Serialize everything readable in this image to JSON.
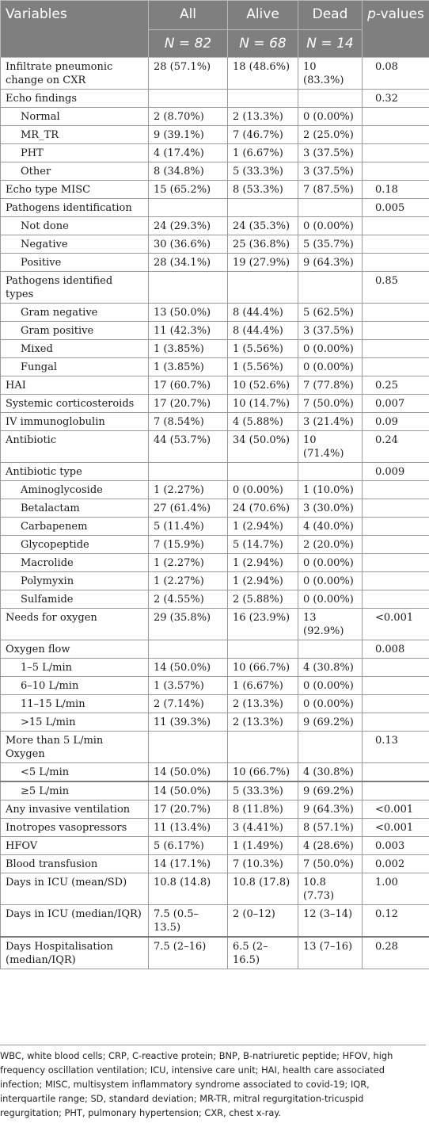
{
  "header": {
    "variables": "Variables",
    "all": "All",
    "alive": "Alive",
    "dead": "Dead",
    "p_prefix": "p",
    "p_suffix": "-values",
    "n_all": "N = 82",
    "n_alive": "N = 68",
    "n_dead": "N = 14"
  },
  "rows": [
    {
      "label": "Infiltrate pneumonic change on CXR",
      "all": "28 (57.1%)",
      "alive": "18 (48.6%)",
      "dead": "10 (83.3%)",
      "p": "0.08",
      "indent": false
    },
    {
      "label": "Echo findings",
      "all": "",
      "alive": "",
      "dead": "",
      "p": "0.32",
      "indent": false
    },
    {
      "label": "Normal",
      "all": "2 (8.70%)",
      "alive": "2 (13.3%)",
      "dead": "0 (0.00%)",
      "p": "",
      "indent": true
    },
    {
      "label": "MR_TR",
      "all": "9 (39.1%)",
      "alive": "7 (46.7%)",
      "dead": "2 (25.0%)",
      "p": "",
      "indent": true
    },
    {
      "label": "PHT",
      "all": "4 (17.4%)",
      "alive": "1 (6.67%)",
      "dead": "3 (37.5%)",
      "p": "",
      "indent": true
    },
    {
      "label": "Other",
      "all": "8 (34.8%)",
      "alive": "5 (33.3%)",
      "dead": "3 (37.5%)",
      "p": "",
      "indent": true
    },
    {
      "label": "Echo type MISC",
      "all": "15 (65.2%)",
      "alive": "8 (53.3%)",
      "dead": "7 (87.5%)",
      "p": "0.18",
      "indent": false
    },
    {
      "label": "Pathogens identification",
      "all": "",
      "alive": "",
      "dead": "",
      "p": "0.005",
      "indent": false
    },
    {
      "label": "Not done",
      "all": "24 (29.3%)",
      "alive": "24 (35.3%)",
      "dead": "0 (0.00%)",
      "p": "",
      "indent": true
    },
    {
      "label": "Negative",
      "all": "30 (36.6%)",
      "alive": "25 (36.8%)",
      "dead": "5 (35.7%)",
      "p": "",
      "indent": true
    },
    {
      "label": "Positive",
      "all": "28 (34.1%)",
      "alive": "19 (27.9%)",
      "dead": "9 (64.3%)",
      "p": "",
      "indent": true
    },
    {
      "label": "Pathogens identified types",
      "all": "",
      "alive": "",
      "dead": "",
      "p": "0.85",
      "indent": false
    },
    {
      "label": "Gram negative",
      "all": "13 (50.0%)",
      "alive": "8 (44.4%)",
      "dead": "5 (62.5%)",
      "p": "",
      "indent": true
    },
    {
      "label": "Gram positive",
      "all": "11 (42.3%)",
      "alive": "8 (44.4%)",
      "dead": "3 (37.5%)",
      "p": "",
      "indent": true
    },
    {
      "label": "Mixed",
      "all": "1 (3.85%)",
      "alive": "1 (5.56%)",
      "dead": "0 (0.00%)",
      "p": "",
      "indent": true
    },
    {
      "label": "Fungal",
      "all": "1 (3.85%)",
      "alive": "1 (5.56%)",
      "dead": "0 (0.00%)",
      "p": "",
      "indent": true
    },
    {
      "label": "HAI",
      "all": "17 (60.7%)",
      "alive": "10 (52.6%)",
      "dead": "7 (77.8%)",
      "p": "0.25",
      "indent": false
    },
    {
      "label": "Systemic corticosteroids",
      "all": "17 (20.7%)",
      "alive": "10 (14.7%)",
      "dead": "7 (50.0%)",
      "p": "0.007",
      "indent": false
    },
    {
      "label": "IV immunoglobulin",
      "all": "7 (8.54%)",
      "alive": "4 (5.88%)",
      "dead": "3 (21.4%)",
      "p": "0.09",
      "indent": false
    },
    {
      "label": "Antibiotic",
      "all": "44 (53.7%)",
      "alive": "34 (50.0%)",
      "dead": "10 (71.4%)",
      "p": "0.24",
      "indent": false
    },
    {
      "label": "Antibiotic type",
      "all": "",
      "alive": "",
      "dead": "",
      "p": "0.009",
      "indent": false
    },
    {
      "label": "Aminoglycoside",
      "all": "1 (2.27%)",
      "alive": "0 (0.00%)",
      "dead": "1 (10.0%)",
      "p": "",
      "indent": true
    },
    {
      "label": "Betalactam",
      "all": "27 (61.4%)",
      "alive": "24 (70.6%)",
      "dead": "3 (30.0%)",
      "p": "",
      "indent": true
    },
    {
      "label": "Carbapenem",
      "all": "5 (11.4%)",
      "alive": "1 (2.94%)",
      "dead": "4 (40.0%)",
      "p": "",
      "indent": true
    },
    {
      "label": "Glycopeptide",
      "all": "7 (15.9%)",
      "alive": "5 (14.7%)",
      "dead": "2 (20.0%)",
      "p": "",
      "indent": true
    },
    {
      "label": "Macrolide",
      "all": "1 (2.27%)",
      "alive": "1 (2.94%)",
      "dead": "0 (0.00%)",
      "p": "",
      "indent": true
    },
    {
      "label": "Polymyxin",
      "all": "1 (2.27%)",
      "alive": "1 (2.94%)",
      "dead": "0 (0.00%)",
      "p": "",
      "indent": true
    },
    {
      "label": "Sulfamide",
      "all": "2 (4.55%)",
      "alive": "2 (5.88%)",
      "dead": "0 (0.00%)",
      "p": "",
      "indent": true
    },
    {
      "label": "Needs for oxygen",
      "all": "29 (35.8%)",
      "alive": "16 (23.9%)",
      "dead": "13 (92.9%)",
      "p": "<0.001",
      "indent": false
    },
    {
      "label": "Oxygen flow",
      "all": "",
      "alive": "",
      "dead": "",
      "p": "0.008",
      "indent": false
    },
    {
      "label": "1–5 L/min",
      "all": "14 (50.0%)",
      "alive": "10 (66.7%)",
      "dead": "4 (30.8%)",
      "p": "",
      "indent": true
    },
    {
      "label": "6–10 L/min",
      "all": "1 (3.57%)",
      "alive": "1 (6.67%)",
      "dead": "0 (0.00%)",
      "p": "",
      "indent": true
    },
    {
      "label": "11–15 L/min",
      "all": "2 (7.14%)",
      "alive": "2 (13.3%)",
      "dead": "0 (0.00%)",
      "p": "",
      "indent": true
    },
    {
      "label": ">15 L/min",
      "all": "11 (39.3%)",
      "alive": "2 (13.3%)",
      "dead": "9 (69.2%)",
      "p": "",
      "indent": true
    },
    {
      "label": "More than 5 L/min Oxygen",
      "all": "",
      "alive": "",
      "dead": "",
      "p": "0.13",
      "indent": false
    },
    {
      "label": "<5 L/min",
      "all": "14 (50.0%)",
      "alive": "10 (66.7%)",
      "dead": "4 (30.8%)",
      "p": "",
      "indent": true
    },
    {
      "label": "≥5 L/min",
      "all": "14 (50.0%)",
      "alive": "5 (33.3%)",
      "dead": "9 (69.2%)",
      "p": "",
      "indent": true,
      "thick": true
    },
    {
      "label": "Any invasive ventilation",
      "all": "17 (20.7%)",
      "alive": "8 (11.8%)",
      "dead": "9 (64.3%)",
      "p": "<0.001",
      "indent": false
    },
    {
      "label": "Inotropes vasopressors",
      "all": "11 (13.4%)",
      "alive": "3 (4.41%)",
      "dead": "8 (57.1%)",
      "p": "<0.001",
      "indent": false
    },
    {
      "label": "HFOV",
      "all": "5 (6.17%)",
      "alive": "1 (1.49%)",
      "dead": "4 (28.6%)",
      "p": "0.003",
      "indent": false
    },
    {
      "label": "Blood transfusion",
      "all": "14 (17.1%)",
      "alive": "7 (10.3%)",
      "dead": "7 (50.0%)",
      "p": "0.002",
      "indent": false
    },
    {
      "label": "Days in ICU (mean/SD)",
      "all": "10.8 (14.8)",
      "alive": "10.8 (17.8)",
      "dead": "10.8 (7.73)",
      "p": "1.00",
      "indent": false
    },
    {
      "label": "Days in ICU (median/IQR)",
      "all": "7.5 (0.5–13.5)",
      "alive": "2 (0–12)",
      "dead": "12 (3–14)",
      "p": "0.12",
      "indent": false
    },
    {
      "label": "Days Hospitalisation (median/IQR)",
      "all": "7.5 (2–16)",
      "alive": "6.5 (2–16.5)",
      "dead": "13 (7–16)",
      "p": "0.28",
      "indent": false,
      "thick": true
    }
  ],
  "footnote": "WBC, white blood cells; CRP, C-reactive protein; BNP, B-natriuretic peptide; HFOV, high frequency oscillation ventilation; ICU, intensive care unit; HAI, health care associated infection; MISC, multisystem inflammatory syndrome associated to covid-19; IQR, interquartile range; SD, standard deviation; MR-TR, mitral regurgitation-tricuspid regurgitation; PHT, pulmonary hypertension; CXR, chest x-ray."
}
